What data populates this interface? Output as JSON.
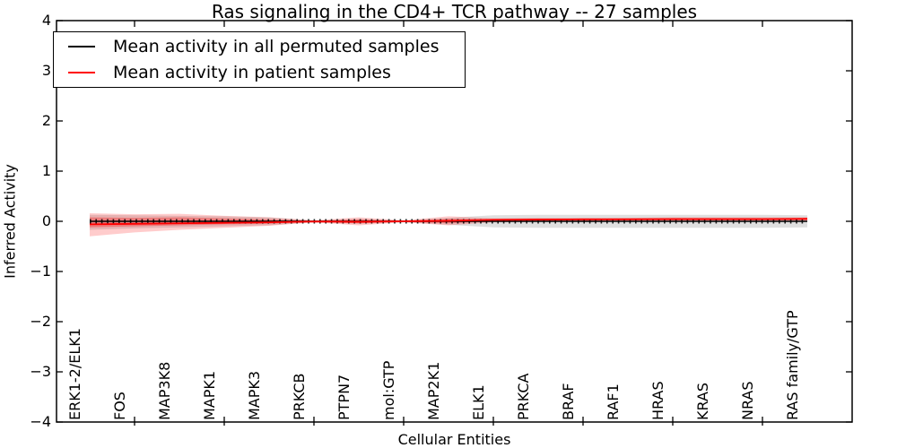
{
  "title": "Ras signaling in the CD4+ TCR pathway -- 27 samples",
  "legend": {
    "items": [
      {
        "label": "Mean activity in all permuted samples",
        "color": "#000000",
        "icon": "line-swatch"
      },
      {
        "label": "Mean activity in patient samples",
        "color": "#ff0000",
        "icon": "line-swatch"
      }
    ],
    "position": "upper left"
  },
  "chart_data": {
    "type": "line",
    "title": "Ras signaling in the CD4+ TCR pathway -- 27 samples",
    "xlabel": "Cellular Entities",
    "ylabel": "Inferred Activity",
    "ylim": [
      -4,
      4
    ],
    "ytick_labels": [
      "4",
      "3",
      "2",
      "1",
      "0",
      "−1",
      "−2",
      "−3",
      "−4"
    ],
    "ytick_values": [
      4,
      3,
      2,
      1,
      0,
      -1,
      -2,
      -3,
      -4
    ],
    "grid": false,
    "legend_position": "upper left",
    "categories": [
      "ERK1-2/ELK1",
      "FOS",
      "MAP3K8",
      "MAPK1",
      "MAPK3",
      "PRKCB",
      "PTPN7",
      "mol:GTP",
      "MAP2K1",
      "ELK1",
      "PRKCA",
      "BRAF",
      "RAF1",
      "HRAS",
      "KRAS",
      "NRAS",
      "RAS family/GTP"
    ],
    "series": [
      {
        "name": "Mean activity in all permuted samples",
        "color": "#000000",
        "marker": "tick",
        "values": [
          0,
          0,
          0,
          0,
          0,
          0,
          0,
          0,
          0,
          0,
          0,
          0,
          0,
          0,
          0,
          0,
          0
        ]
      },
      {
        "name": "Mean activity in patient samples",
        "color": "#ff0000",
        "marker": "none",
        "values": [
          -0.06,
          -0.05,
          -0.04,
          -0.03,
          -0.02,
          -0.005,
          -0.01,
          0,
          0.01,
          0.03,
          0.035,
          0.04,
          0.04,
          0.045,
          0.045,
          0.045,
          0.05
        ]
      }
    ],
    "bands": [
      {
        "name": "permuted-samples-range",
        "color": "rgba(128,128,128,0.25)",
        "upper": [
          0.13,
          0.12,
          0.11,
          0.1,
          0.08,
          0.015,
          0.05,
          0.015,
          0.07,
          0.12,
          0.13,
          0.13,
          0.13,
          0.13,
          0.13,
          0.13,
          0.12
        ],
        "lower": [
          -0.17,
          -0.14,
          -0.12,
          -0.1,
          -0.08,
          -0.015,
          -0.05,
          -0.015,
          -0.07,
          -0.12,
          -0.13,
          -0.13,
          -0.13,
          -0.13,
          -0.13,
          -0.13,
          -0.12
        ]
      },
      {
        "name": "patient-samples-range-outer",
        "color": "rgba(255,0,0,0.20)",
        "upper": [
          0.16,
          0.14,
          0.15,
          0.11,
          0.08,
          0.02,
          0.08,
          0.02,
          0.1,
          0.06,
          0.07,
          0.07,
          0.07,
          0.08,
          0.08,
          0.08,
          0.08
        ],
        "lower": [
          -0.3,
          -0.22,
          -0.17,
          -0.13,
          -0.09,
          -0.02,
          -0.08,
          -0.02,
          -0.08,
          -0.02,
          -0.01,
          -0.01,
          0,
          0,
          0,
          0,
          0
        ]
      },
      {
        "name": "patient-samples-range-inner",
        "color": "rgba(255,0,0,0.30)",
        "upper": [
          0.08,
          0.07,
          0.08,
          0.06,
          0.04,
          0.01,
          0.04,
          0.01,
          0.05,
          0.04,
          0.05,
          0.05,
          0.06,
          0.06,
          0.06,
          0.06,
          0.06
        ],
        "lower": [
          -0.12,
          -0.1,
          -0.08,
          -0.06,
          -0.05,
          -0.01,
          -0.04,
          -0.01,
          -0.04,
          0,
          0.01,
          0.01,
          0.02,
          0.02,
          0.02,
          0.02,
          0.02
        ]
      }
    ]
  }
}
